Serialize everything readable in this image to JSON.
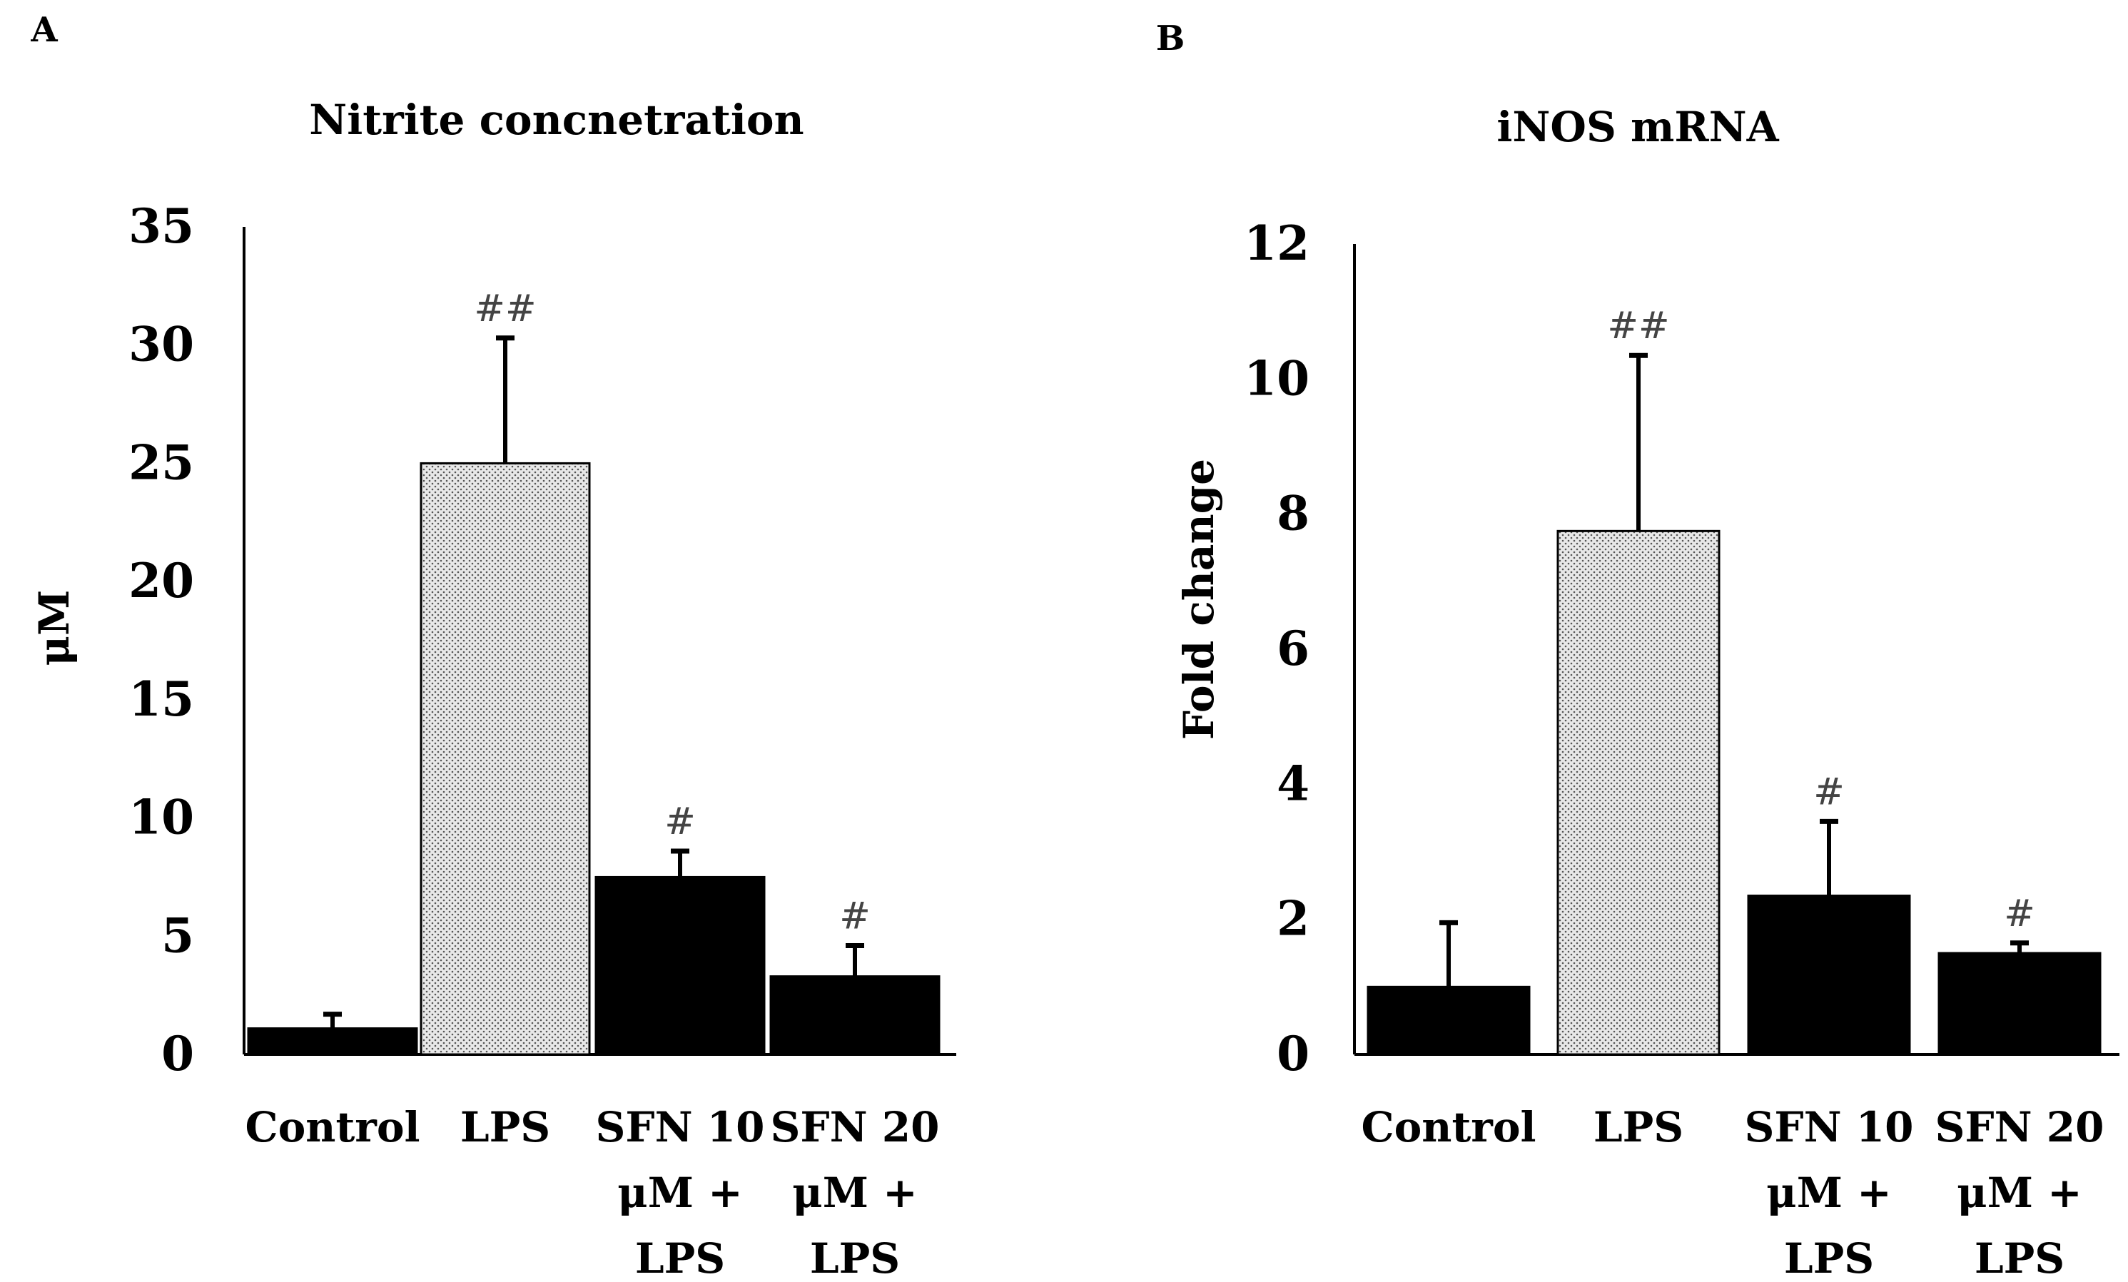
{
  "chart_data": [
    {
      "panel": "A",
      "type": "bar",
      "title": "Nitrite concnetration",
      "xlabel": "",
      "ylabel": "μM",
      "ylim": [
        0,
        35
      ],
      "yticks": [
        0,
        5,
        10,
        15,
        20,
        25,
        30,
        35
      ],
      "categories": [
        "Control",
        "LPS",
        "SFN 10 μM + LPS",
        "SFN 20 μM + LPS"
      ],
      "category_lines": [
        [
          "Control"
        ],
        [
          "LPS"
        ],
        [
          "SFN 10",
          "μM +",
          "LPS"
        ],
        [
          "SFN 20",
          "μM +",
          "LPS"
        ]
      ],
      "values": [
        1.1,
        25.0,
        7.5,
        3.3
      ],
      "errors": [
        0.6,
        5.3,
        1.1,
        1.3
      ],
      "significance": [
        "",
        "##",
        "#",
        "#"
      ],
      "fills": [
        "solid",
        "dotted",
        "solid",
        "solid"
      ]
    },
    {
      "panel": "B",
      "type": "bar",
      "title": "iNOS mRNA",
      "xlabel": "",
      "ylabel": "Fold change",
      "ylim": [
        0,
        12
      ],
      "yticks": [
        0,
        2,
        4,
        6,
        8,
        10,
        12
      ],
      "categories": [
        "Control",
        "LPS",
        "SFN 10 μM + LPS",
        "SFN 20 μM + LPS"
      ],
      "category_lines": [
        [
          "Control"
        ],
        [
          "LPS"
        ],
        [
          "SFN 10",
          "μM +",
          "LPS"
        ],
        [
          "SFN 20",
          "μM +",
          "LPS"
        ]
      ],
      "values": [
        1.0,
        7.75,
        2.35,
        1.5
      ],
      "errors": [
        0.95,
        2.6,
        1.1,
        0.15
      ],
      "significance": [
        "",
        "##",
        "#",
        "#"
      ],
      "fills": [
        "solid",
        "dotted",
        "solid",
        "solid"
      ]
    }
  ],
  "colors": {
    "bar": "#000000",
    "dot_bg": "#e8e8e8",
    "dot": "#555555",
    "sig": "#444444"
  }
}
